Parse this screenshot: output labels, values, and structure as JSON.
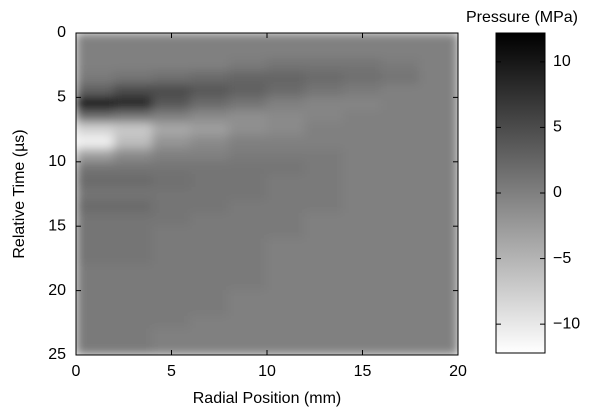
{
  "chart_data": {
    "type": "heatmap",
    "xlabel": "Radial Position (mm)",
    "ylabel": "Relative Time (µs)",
    "colorbar_label": "Pressure (MPa)",
    "xlim": [
      0,
      20
    ],
    "ylim": [
      25,
      0
    ],
    "xticks": [
      0,
      5,
      10,
      15,
      20
    ],
    "yticks": [
      0,
      5,
      10,
      15,
      20,
      25
    ],
    "zlim": [
      -12.2,
      12.2
    ],
    "zticks": [
      10,
      5,
      0,
      {
        "value": -5,
        "label": "−5"
      },
      {
        "value": -10,
        "label": "−10"
      }
    ],
    "low_color": "#ffffff",
    "high_color": "#000000",
    "xbins": [
      0,
      2,
      4,
      6,
      8,
      10,
      12,
      14,
      16,
      18,
      20
    ],
    "ybins": [
      0,
      1,
      2,
      3,
      4,
      5,
      6,
      7,
      8,
      9,
      10,
      11,
      12,
      13,
      14,
      15,
      16,
      17,
      18,
      19,
      20,
      21,
      22,
      23,
      24,
      25
    ],
    "z": [
      [
        0,
        0,
        0,
        0,
        0,
        0,
        0,
        0,
        0,
        0
      ],
      [
        0,
        0,
        0,
        0,
        0,
        0,
        0,
        0,
        0,
        0
      ],
      [
        0,
        0,
        0,
        0,
        0.5,
        1,
        1,
        1,
        0.5,
        0
      ],
      [
        0.5,
        1,
        1.5,
        2,
        2.5,
        2.5,
        2,
        1.5,
        1,
        0
      ],
      [
        3,
        5,
        5,
        4,
        3,
        2,
        1,
        0.5,
        0,
        0
      ],
      [
        11,
        9,
        4,
        2,
        1,
        0,
        -0.5,
        -0.5,
        0,
        0
      ],
      [
        2,
        1,
        0,
        -1,
        -1.5,
        -1,
        -0.5,
        0,
        0,
        0
      ],
      [
        -8,
        -7,
        -4,
        -3,
        -1.5,
        -1,
        0,
        0,
        0,
        0
      ],
      [
        -11,
        -6,
        -2,
        -1,
        0,
        0,
        0,
        0,
        0,
        0
      ],
      [
        -3,
        -1,
        0,
        0,
        0.5,
        0.5,
        0.5,
        0,
        0,
        0
      ],
      [
        1,
        1,
        1,
        1,
        1,
        1,
        0.5,
        0,
        0,
        0
      ],
      [
        2,
        2,
        1.5,
        1,
        1,
        0.5,
        0.5,
        0,
        0,
        0
      ],
      [
        1,
        1,
        1,
        1,
        1,
        0.5,
        0.5,
        0,
        0,
        0
      ],
      [
        2,
        2,
        1,
        1,
        0.5,
        0.5,
        0.5,
        0,
        0,
        0
      ],
      [
        1,
        1,
        1,
        0.5,
        0.5,
        0.5,
        0,
        0,
        0,
        0
      ],
      [
        1,
        1,
        0.5,
        0.5,
        0.5,
        0.5,
        0,
        0,
        0,
        0
      ],
      [
        1,
        1,
        0.5,
        0.5,
        0.5,
        0,
        0,
        0,
        0,
        0
      ],
      [
        1,
        1,
        0.5,
        0.5,
        0.5,
        0,
        0,
        0,
        0,
        0
      ],
      [
        0.5,
        0.5,
        0.5,
        0.5,
        0.5,
        0,
        0,
        0,
        0,
        0
      ],
      [
        0.5,
        0.5,
        0.5,
        0.5,
        0.5,
        0,
        0,
        0,
        0,
        0
      ],
      [
        0.5,
        0.5,
        0.5,
        0.5,
        0,
        0,
        0,
        0,
        0,
        0
      ],
      [
        0.5,
        0.5,
        0.5,
        0.5,
        0,
        0,
        0,
        0,
        0,
        0
      ],
      [
        0.5,
        0.5,
        0.5,
        0,
        0,
        0,
        0,
        0,
        0,
        0
      ],
      [
        0.5,
        0.5,
        0,
        0,
        0,
        0,
        0,
        0,
        0,
        0
      ],
      [
        0.5,
        0.5,
        0,
        0,
        0,
        0,
        0,
        0,
        0,
        0
      ]
    ]
  }
}
